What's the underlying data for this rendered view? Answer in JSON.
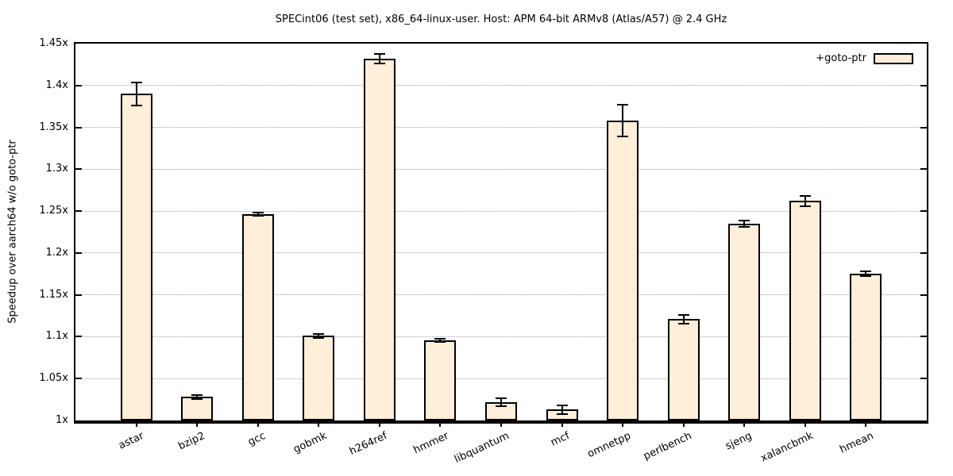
{
  "chart_data": {
    "type": "bar",
    "title": "SPECint06 (test set), x86_64-linux-user. Host: APM 64-bit ARMv8 (Atlas/A57) @ 2.4 GHz",
    "xlabel": "",
    "ylabel": "Speedup over aarch64 w/o goto-ptr",
    "ylim": [
      1.0,
      1.45
    ],
    "grid": true,
    "legend_position": "top-right-inside",
    "bar_color": "#ffeeda",
    "bar_border_color": "#000000",
    "gridline_color": "#9e9e9e",
    "categories": [
      "astar",
      "bzip2",
      "gcc",
      "gobmk",
      "h264ref",
      "hmmer",
      "libquantum",
      "mcf",
      "omnetpp",
      "perlbench",
      "sjeng",
      "xalancbmk",
      "hmean"
    ],
    "series": [
      {
        "name": "+goto-ptr",
        "values": [
          1.39,
          1.028,
          1.246,
          1.101,
          1.432,
          1.096,
          1.022,
          1.013,
          1.358,
          1.121,
          1.235,
          1.262,
          1.175
        ],
        "errors": [
          0.014,
          0.002,
          0.002,
          0.002,
          0.006,
          0.002,
          0.005,
          0.005,
          0.019,
          0.005,
          0.004,
          0.006,
          0.003
        ]
      }
    ],
    "yticks": {
      "values": [
        1.0,
        1.05,
        1.1,
        1.15,
        1.2,
        1.25,
        1.3,
        1.35,
        1.4,
        1.45
      ],
      "labels": [
        "1x",
        "1.05x",
        "1.1x",
        "1.15x",
        "1.2x",
        "1.25x",
        "1.3x",
        "1.35x",
        "1.4x",
        "1.45x"
      ]
    }
  }
}
